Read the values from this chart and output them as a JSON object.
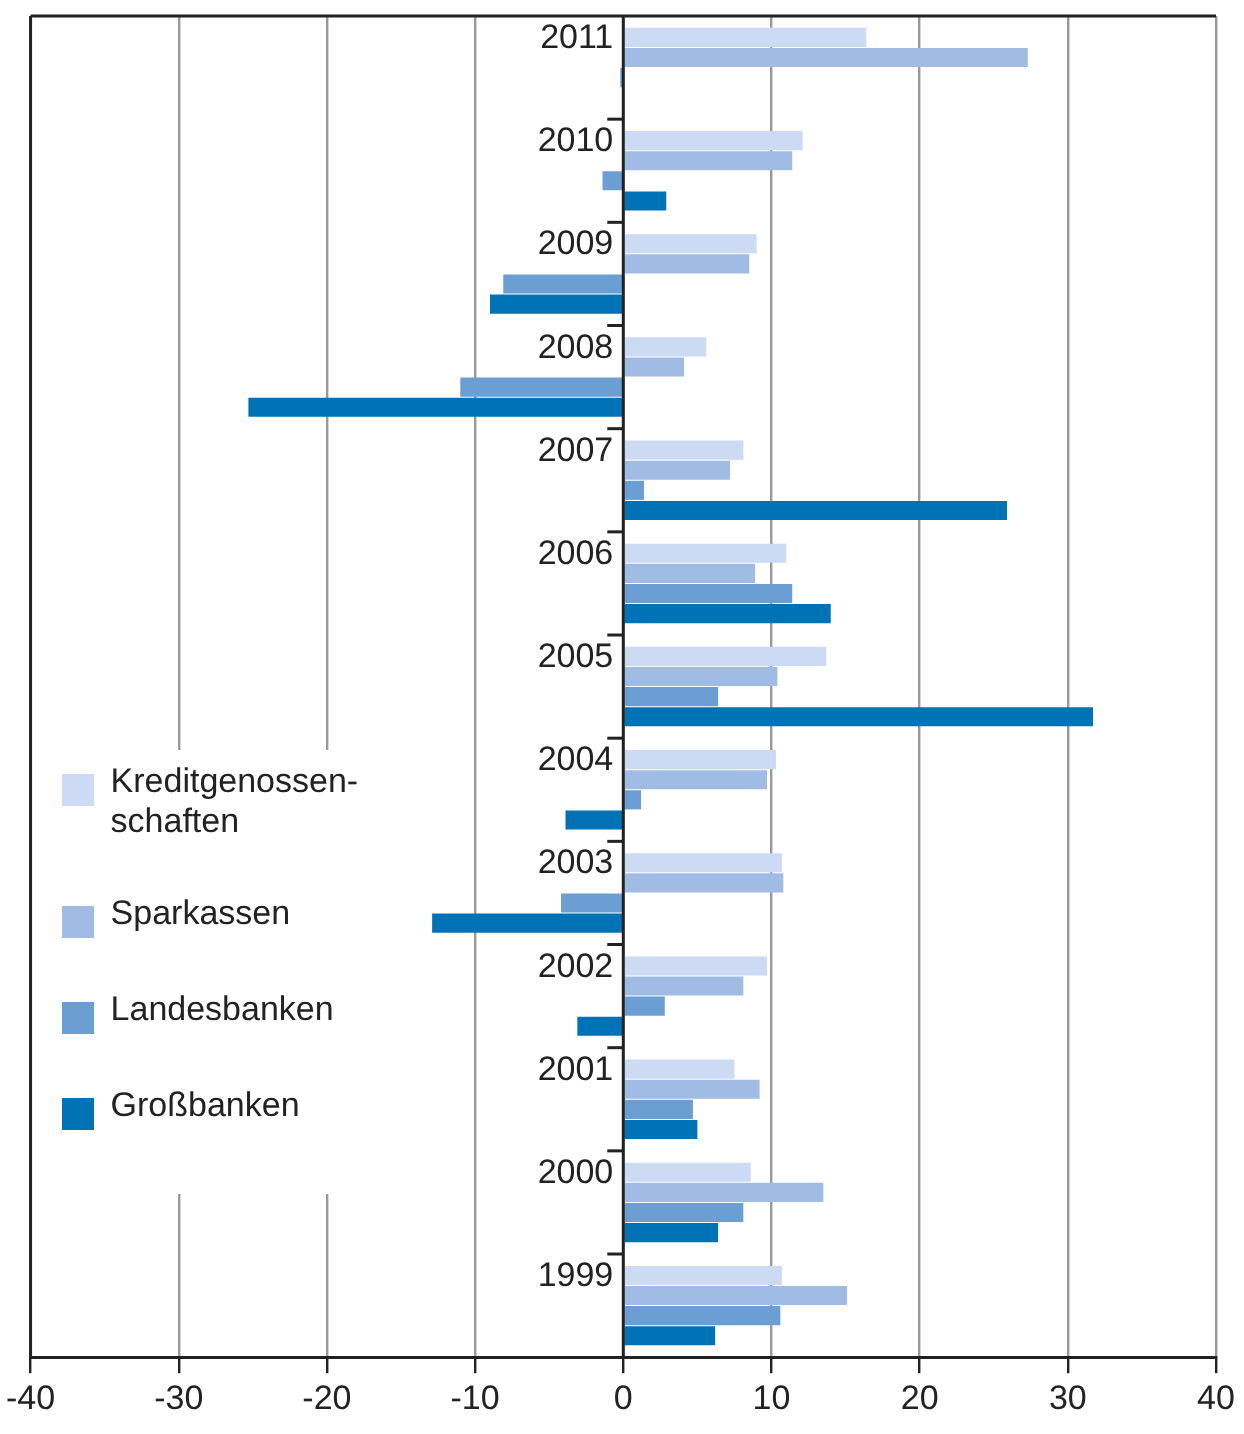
{
  "chart_data": {
    "type": "bar",
    "orientation": "horizontal",
    "categories": [
      "2011",
      "2010",
      "2009",
      "2008",
      "2007",
      "2006",
      "2005",
      "2004",
      "2003",
      "2002",
      "2001",
      "2000",
      "1999"
    ],
    "series": [
      {
        "name": "Kreditgenossen-schaften",
        "color": "#ccdaf3",
        "values": [
          16.4,
          12.1,
          9.0,
          5.6,
          8.1,
          11.0,
          13.7,
          10.3,
          10.7,
          9.7,
          7.5,
          8.6,
          10.7
        ]
      },
      {
        "name": "Sparkassen",
        "color": "#a0bce4",
        "values": [
          27.3,
          11.4,
          8.5,
          4.1,
          7.2,
          8.9,
          10.4,
          9.7,
          10.8,
          8.1,
          9.2,
          13.5,
          15.1
        ]
      },
      {
        "name": "Landesbanken",
        "color": "#6b9fd3",
        "values": [
          -0.2,
          -1.4,
          -8.1,
          -11.0,
          1.4,
          11.4,
          6.4,
          1.2,
          -4.2,
          2.8,
          4.7,
          8.1,
          10.6
        ]
      },
      {
        "name": "Großbanken",
        "color": "#0073b6",
        "values": [
          null,
          2.9,
          -9.0,
          -25.3,
          25.9,
          14.0,
          31.7,
          -3.9,
          -12.9,
          -3.1,
          5.0,
          6.4,
          6.2
        ]
      }
    ],
    "xlim": [
      -40,
      40
    ],
    "xticks": [
      -40,
      -30,
      -20,
      -10,
      0,
      10,
      20,
      30,
      40
    ],
    "grid": "x",
    "legend": "left"
  }
}
